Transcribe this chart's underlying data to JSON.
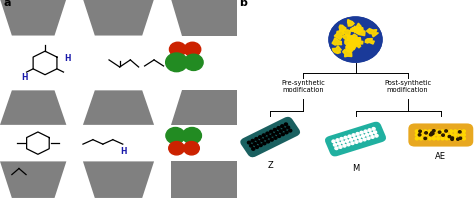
{
  "panel_a_label": "a",
  "panel_b_label": "b",
  "bg_color": "#ffffff",
  "trap_color": "#808080",
  "blue_text": "#1a1aaa",
  "green_color": "#228B22",
  "red_color": "#cc2200",
  "teal_dark": "#1a6060",
  "teal_mid": "#20b0a0",
  "orange_crys": "#E8A820",
  "pre_synthetic_text": "Pre-synthetic\nmodification",
  "post_synthetic_text": "Post-synthetic\nmodification",
  "label_Z": "Z",
  "label_M": "M",
  "label_AE": "AE"
}
